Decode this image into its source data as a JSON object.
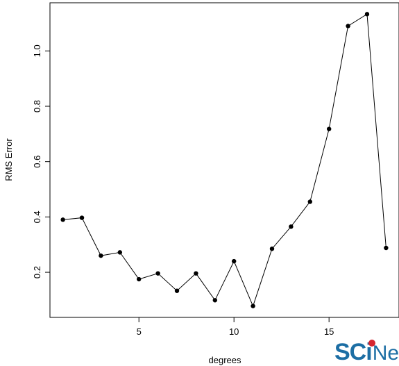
{
  "chart_data": {
    "type": "line",
    "title": "",
    "xlabel": "degrees",
    "ylabel": "RMS Error",
    "xlim": [
      0.32,
      18.68
    ],
    "ylim": [
      0.037,
      1.174
    ],
    "x_ticks": [
      5,
      10,
      15
    ],
    "y_ticks": [
      0.2,
      0.4,
      0.6,
      0.8,
      1.0
    ],
    "y_tick_labels": [
      "0.2",
      "0.4",
      "0.6",
      "0.8",
      "1.0"
    ],
    "grid": false,
    "series": [
      {
        "x": [
          1,
          2,
          3,
          4,
          5,
          6,
          7,
          8,
          9,
          10,
          11,
          12,
          13,
          14,
          15,
          16,
          17,
          18
        ],
        "values": [
          0.39,
          0.397,
          0.26,
          0.272,
          0.175,
          0.196,
          0.133,
          0.196,
          0.099,
          0.24,
          0.078,
          0.285,
          0.365,
          0.455,
          0.718,
          1.09,
          1.133,
          0.288
        ],
        "marker": "filled-circle",
        "color": "#000000"
      }
    ]
  },
  "logo": {
    "text_main": "SC",
    "text_i": "i",
    "text_tail": "Ne"
  }
}
